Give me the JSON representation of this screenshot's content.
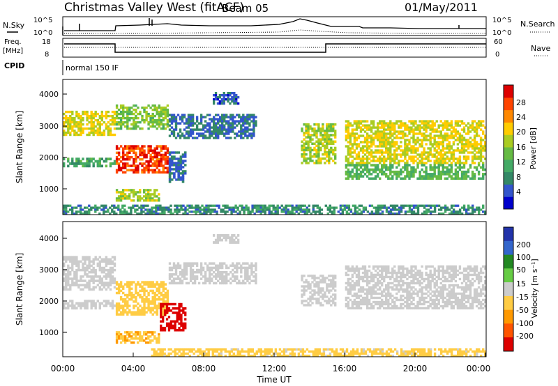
{
  "header": {
    "title": "Christmas Valley West (fitACF)",
    "beam": "Beam 05",
    "date": "01/May/2011"
  },
  "status_panels": {
    "nsky": {
      "label": "N.Sky",
      "ticks": [
        "10^5",
        "10^0"
      ]
    },
    "nsearch": {
      "label": "N.Search",
      "ticks": [
        "10^5",
        "10^0"
      ]
    },
    "freq": {
      "label_line1": "Freq.",
      "label_line2": "[MHz]",
      "ticks": [
        "18",
        "8"
      ]
    },
    "nave": {
      "label": "Nave",
      "ticks": [
        "60",
        "0"
      ]
    },
    "cpid": {
      "label": "CPID",
      "value": "normal 150 IF"
    }
  },
  "x_axis": {
    "label": "Time UT",
    "ticks": [
      "00:00",
      "04:00",
      "08:00",
      "12:00",
      "16:00",
      "20:00",
      "00:00"
    ]
  },
  "power_panel": {
    "ylabel": "Slant Range [km]",
    "yticks": [
      "4000",
      "3000",
      "2000",
      "1000"
    ],
    "colorbar_label": "Power [dB]",
    "colorbar_ticks": [
      "28",
      "24",
      "20",
      "16",
      "12",
      "8",
      "4"
    ],
    "colors": [
      "#0000cc",
      "#3355cc",
      "#338866",
      "#44aa66",
      "#66bb44",
      "#aacc22",
      "#ffcc00",
      "#ff8800",
      "#ff4400",
      "#dd0000"
    ]
  },
  "velocity_panel": {
    "ylabel": "Slant Range [km]",
    "yticks": [
      "4000",
      "3000",
      "2000",
      "1000"
    ],
    "colorbar_label": "Velocity [m s⁻¹]",
    "colorbar_ticks": [
      "200",
      "100",
      "50",
      "15",
      "-15",
      "-50",
      "-100",
      "-200"
    ],
    "colors": [
      "#2233aa",
      "#3366cc",
      "#228822",
      "#66cc44",
      "#cccccc",
      "#ffcc44",
      "#ff9900",
      "#ff5500",
      "#dd0000"
    ]
  },
  "chart_data": [
    {
      "type": "heatmap",
      "title": "Christmas Valley West (fitACF) Beam 05 — Power",
      "xlabel": "Time UT",
      "ylabel": "Slant Range [km]",
      "x_range_hours": [
        0,
        24
      ],
      "ylim": [
        180,
        4500
      ],
      "colorbar": {
        "label": "Power [dB]",
        "range": [
          0,
          30
        ]
      },
      "bands": [
        {
          "t": [
            0.0,
            3.0
          ],
          "range": [
            2700,
            3500
          ],
          "power": 18
        },
        {
          "t": [
            0.0,
            3.0
          ],
          "range": [
            1700,
            2000
          ],
          "power": 10
        },
        {
          "t": [
            3.0,
            6.0
          ],
          "range": [
            1500,
            2400
          ],
          "power": 26
        },
        {
          "t": [
            3.0,
            6.0
          ],
          "range": [
            2900,
            3700
          ],
          "power": 14
        },
        {
          "t": [
            3.0,
            5.5
          ],
          "range": [
            600,
            1000
          ],
          "power": 16
        },
        {
          "t": [
            6.0,
            11.0
          ],
          "range": [
            2600,
            3400
          ],
          "power": 6
        },
        {
          "t": [
            6.0,
            7.0
          ],
          "range": [
            1200,
            2200
          ],
          "power": 6
        },
        {
          "t": [
            8.5,
            10.0
          ],
          "range": [
            3700,
            4100
          ],
          "power": 5
        },
        {
          "t": [
            13.5,
            15.5
          ],
          "range": [
            1800,
            3100
          ],
          "power": 16
        },
        {
          "t": [
            16.0,
            24.0
          ],
          "range": [
            1800,
            3200
          ],
          "power": 18
        },
        {
          "t": [
            16.0,
            24.0
          ],
          "range": [
            1300,
            1800
          ],
          "power": 12
        },
        {
          "t": [
            0.0,
            24.0
          ],
          "range": [
            180,
            500
          ],
          "power": 8
        }
      ]
    },
    {
      "type": "heatmap",
      "title": "Christmas Valley West (fitACF) Beam 05 — Velocity",
      "xlabel": "Time UT",
      "ylabel": "Slant Range [km]",
      "x_range_hours": [
        0,
        24
      ],
      "ylim": [
        180,
        4500
      ],
      "colorbar": {
        "label": "Velocity [m s⁻¹]",
        "range": [
          -250,
          250
        ]
      },
      "bands": [
        {
          "t": [
            0.0,
            3.0
          ],
          "range": [
            2300,
            3400
          ],
          "velocity": 0
        },
        {
          "t": [
            0.0,
            3.0
          ],
          "range": [
            1700,
            2000
          ],
          "velocity": 0
        },
        {
          "t": [
            3.0,
            6.0
          ],
          "range": [
            1500,
            2600
          ],
          "velocity": -60
        },
        {
          "t": [
            3.0,
            5.5
          ],
          "range": [
            600,
            1000
          ],
          "velocity": -80
        },
        {
          "t": [
            5.5,
            7.0
          ],
          "range": [
            1000,
            1900
          ],
          "velocity": -220
        },
        {
          "t": [
            6.0,
            11.0
          ],
          "range": [
            2500,
            3200
          ],
          "velocity": 0
        },
        {
          "t": [
            8.5,
            10.0
          ],
          "range": [
            3800,
            4100
          ],
          "velocity": 5
        },
        {
          "t": [
            13.5,
            15.5
          ],
          "range": [
            1800,
            2800
          ],
          "velocity": 0
        },
        {
          "t": [
            16.0,
            24.0
          ],
          "range": [
            1700,
            3100
          ],
          "velocity": 0
        },
        {
          "t": [
            5.0,
            24.0
          ],
          "range": [
            180,
            450
          ],
          "velocity": -40
        }
      ]
    }
  ]
}
